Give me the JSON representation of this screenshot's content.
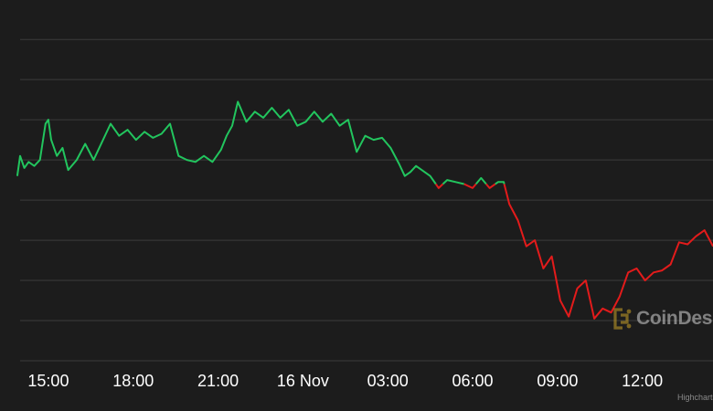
{
  "chart_data": {
    "type": "line",
    "x_axis": {
      "tick_labels": [
        "15:00",
        "18:00",
        "21:00",
        "16 Nov",
        "03:00",
        "06:00",
        "09:00",
        "12:00"
      ],
      "tick_hours": [
        15,
        18,
        21,
        24,
        27,
        30,
        33,
        36
      ],
      "range_hours": [
        14,
        38.5
      ]
    },
    "y_axis": {
      "tick_labels": [
        "",
        "",
        "",
        "",
        "",
        "",
        "",
        "",
        ""
      ],
      "tick_values": [
        0,
        1,
        2,
        3,
        4,
        5,
        6,
        7,
        8
      ],
      "range": [
        0,
        8.3
      ]
    },
    "grid": true,
    "reference_value": 4.4,
    "colors": {
      "above_reference": "#22c55e",
      "below_reference": "#e31b1b",
      "grid": "#3b3b3b",
      "axis_text": "#ffffff"
    },
    "series": [
      {
        "x": [
          13.9,
          14.0,
          14.15,
          14.3,
          14.5,
          14.7,
          14.9,
          15.0,
          15.1,
          15.3,
          15.5,
          15.7,
          16.0,
          16.3,
          16.6,
          16.9,
          17.2,
          17.5,
          17.8,
          18.1,
          18.4,
          18.7,
          19.0,
          19.3,
          19.6,
          19.9,
          20.2,
          20.5,
          20.8,
          21.1,
          21.3,
          21.5,
          21.7,
          22.0,
          22.3,
          22.6,
          22.9,
          23.2,
          23.5,
          23.8,
          24.1,
          24.4,
          24.7,
          25.0,
          25.3,
          25.6,
          25.9,
          26.2,
          26.5,
          26.8,
          27.1,
          27.4,
          27.6,
          27.8,
          28.0,
          28.2,
          28.5,
          28.8,
          29.1,
          29.4,
          29.7,
          30.0,
          30.3,
          30.6,
          30.9,
          31.1,
          31.3,
          31.6,
          31.9,
          32.2,
          32.5,
          32.8,
          33.1,
          33.4,
          33.7,
          34.0,
          34.3,
          34.6,
          34.9,
          35.2,
          35.5,
          35.8,
          36.1,
          36.4,
          36.7,
          37.0,
          37.3,
          37.6,
          37.9,
          38.2,
          38.5
        ],
        "y": [
          4.6,
          5.1,
          4.8,
          4.95,
          4.85,
          5.0,
          5.9,
          6.0,
          5.5,
          5.1,
          5.3,
          4.75,
          5.0,
          5.4,
          5.0,
          5.45,
          5.9,
          5.6,
          5.75,
          5.5,
          5.7,
          5.55,
          5.65,
          5.9,
          5.1,
          5.0,
          4.95,
          5.1,
          4.95,
          5.25,
          5.6,
          5.85,
          6.45,
          5.95,
          6.2,
          6.05,
          6.3,
          6.05,
          6.25,
          5.85,
          5.95,
          6.2,
          5.95,
          6.15,
          5.85,
          6.0,
          5.2,
          5.6,
          5.5,
          5.55,
          5.3,
          4.9,
          4.6,
          4.7,
          4.85,
          4.75,
          4.6,
          4.3,
          4.5,
          4.45,
          4.4,
          4.3,
          4.55,
          4.3,
          4.45,
          4.45,
          3.9,
          3.5,
          2.85,
          3.0,
          2.3,
          2.6,
          1.5,
          1.1,
          1.8,
          2.0,
          1.05,
          1.3,
          1.2,
          1.6,
          2.2,
          2.3,
          2.0,
          2.2,
          2.25,
          2.4,
          2.95,
          2.9,
          3.1,
          3.25,
          2.85
        ]
      }
    ]
  },
  "watermark": {
    "text": "CoinDesk",
    "icon": "coindesk-logo-icon"
  },
  "credits": "Highcharts.com"
}
